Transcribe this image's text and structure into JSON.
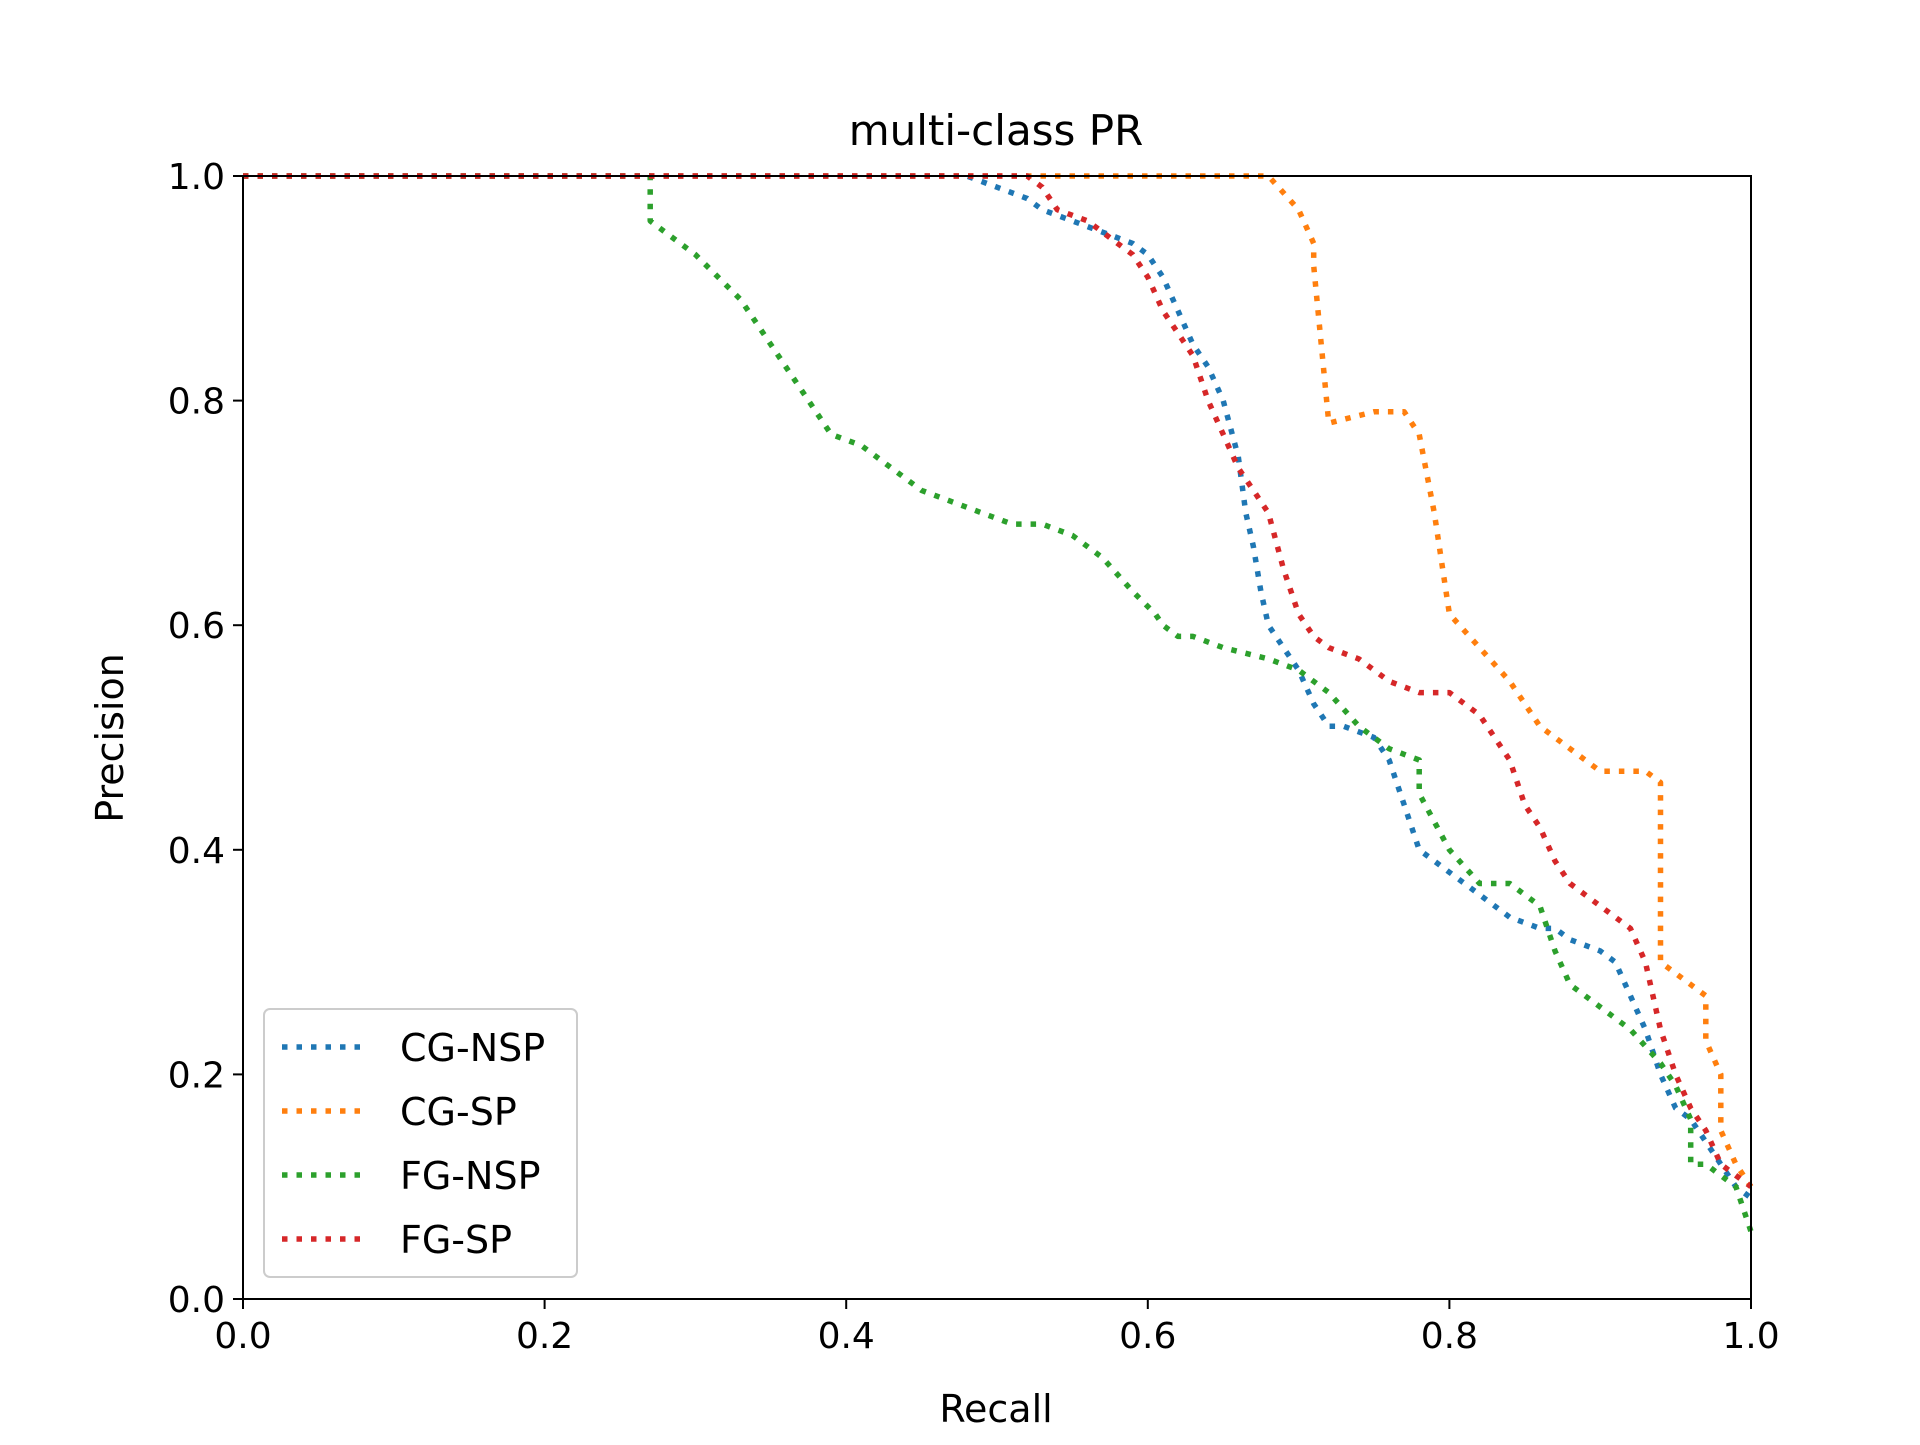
{
  "chart_data": {
    "type": "line",
    "title": "multi-class PR",
    "xlabel": "Recall",
    "ylabel": "Precision",
    "xlim": [
      0.0,
      1.0
    ],
    "ylim": [
      0.0,
      1.0
    ],
    "xticks": [
      0.0,
      0.2,
      0.4,
      0.6,
      0.8,
      1.0
    ],
    "yticks": [
      0.0,
      0.2,
      0.4,
      0.6,
      0.8,
      1.0
    ],
    "xtick_labels": [
      "0.0",
      "0.2",
      "0.4",
      "0.6",
      "0.8",
      "1.0"
    ],
    "ytick_labels": [
      "0.0",
      "0.2",
      "0.4",
      "0.6",
      "0.8",
      "1.0"
    ],
    "grid": false,
    "legend_position": "lower-left",
    "line_style": "dotted",
    "series": [
      {
        "name": "CG-NSP",
        "color": "#1f77b4",
        "x": [
          0.0,
          0.48,
          0.5,
          0.52,
          0.53,
          0.55,
          0.57,
          0.59,
          0.6,
          0.61,
          0.62,
          0.63,
          0.64,
          0.65,
          0.66,
          0.665,
          0.67,
          0.675,
          0.68,
          0.69,
          0.7,
          0.71,
          0.72,
          0.73,
          0.75,
          0.76,
          0.77,
          0.78,
          0.79,
          0.8,
          0.82,
          0.84,
          0.86,
          0.87,
          0.88,
          0.9,
          0.91,
          0.92,
          0.93,
          0.94,
          0.95,
          0.96,
          0.97,
          0.98,
          0.99,
          1.0
        ],
        "y": [
          1.0,
          1.0,
          0.99,
          0.98,
          0.97,
          0.96,
          0.95,
          0.94,
          0.93,
          0.91,
          0.88,
          0.85,
          0.83,
          0.8,
          0.75,
          0.7,
          0.67,
          0.63,
          0.6,
          0.58,
          0.56,
          0.53,
          0.51,
          0.51,
          0.5,
          0.48,
          0.44,
          0.4,
          0.39,
          0.38,
          0.36,
          0.34,
          0.33,
          0.33,
          0.32,
          0.31,
          0.3,
          0.27,
          0.24,
          0.2,
          0.17,
          0.16,
          0.14,
          0.12,
          0.1,
          0.09
        ]
      },
      {
        "name": "CG-SP",
        "color": "#ff7f0e",
        "x": [
          0.0,
          0.68,
          0.7,
          0.71,
          0.71,
          0.72,
          0.75,
          0.77,
          0.78,
          0.79,
          0.8,
          0.82,
          0.84,
          0.86,
          0.88,
          0.9,
          0.93,
          0.94,
          0.94,
          0.95,
          0.96,
          0.97,
          0.97,
          0.98,
          0.98,
          0.99,
          1.0
        ],
        "y": [
          1.0,
          1.0,
          0.97,
          0.94,
          0.92,
          0.78,
          0.79,
          0.79,
          0.77,
          0.7,
          0.61,
          0.58,
          0.55,
          0.51,
          0.49,
          0.47,
          0.47,
          0.46,
          0.3,
          0.29,
          0.28,
          0.27,
          0.23,
          0.2,
          0.15,
          0.12,
          0.1
        ]
      },
      {
        "name": "FG-NSP",
        "color": "#2ca02c",
        "x": [
          0.0,
          0.27,
          0.27,
          0.28,
          0.3,
          0.33,
          0.35,
          0.37,
          0.39,
          0.41,
          0.43,
          0.45,
          0.47,
          0.49,
          0.51,
          0.53,
          0.55,
          0.57,
          0.59,
          0.605,
          0.61,
          0.62,
          0.63,
          0.65,
          0.68,
          0.7,
          0.72,
          0.74,
          0.76,
          0.78,
          0.78,
          0.8,
          0.82,
          0.84,
          0.86,
          0.87,
          0.88,
          0.89,
          0.9,
          0.92,
          0.94,
          0.95,
          0.96,
          0.96,
          0.97,
          0.98,
          0.99,
          1.0
        ],
        "y": [
          1.0,
          1.0,
          0.96,
          0.95,
          0.93,
          0.89,
          0.85,
          0.81,
          0.77,
          0.76,
          0.74,
          0.72,
          0.71,
          0.7,
          0.69,
          0.69,
          0.68,
          0.66,
          0.63,
          0.61,
          0.6,
          0.59,
          0.59,
          0.58,
          0.57,
          0.56,
          0.54,
          0.51,
          0.49,
          0.48,
          0.45,
          0.4,
          0.37,
          0.37,
          0.35,
          0.31,
          0.28,
          0.27,
          0.26,
          0.24,
          0.21,
          0.19,
          0.16,
          0.12,
          0.12,
          0.11,
          0.1,
          0.06
        ]
      },
      {
        "name": "FG-SP",
        "color": "#d62728",
        "x": [
          0.0,
          0.5,
          0.51,
          0.52,
          0.53,
          0.54,
          0.56,
          0.58,
          0.59,
          0.6,
          0.61,
          0.62,
          0.63,
          0.64,
          0.65,
          0.66,
          0.67,
          0.68,
          0.69,
          0.7,
          0.71,
          0.72,
          0.74,
          0.76,
          0.78,
          0.8,
          0.82,
          0.84,
          0.85,
          0.86,
          0.87,
          0.88,
          0.9,
          0.92,
          0.93,
          0.94,
          0.95,
          0.96,
          0.97,
          0.98,
          0.99,
          1.0
        ],
        "y": [
          1.0,
          1.0,
          1.0,
          1.0,
          0.99,
          0.97,
          0.96,
          0.94,
          0.93,
          0.91,
          0.88,
          0.86,
          0.84,
          0.8,
          0.77,
          0.74,
          0.72,
          0.7,
          0.65,
          0.61,
          0.59,
          0.58,
          0.57,
          0.55,
          0.54,
          0.54,
          0.52,
          0.48,
          0.44,
          0.42,
          0.39,
          0.37,
          0.35,
          0.33,
          0.3,
          0.24,
          0.2,
          0.17,
          0.15,
          0.12,
          0.11,
          0.1
        ]
      }
    ]
  }
}
